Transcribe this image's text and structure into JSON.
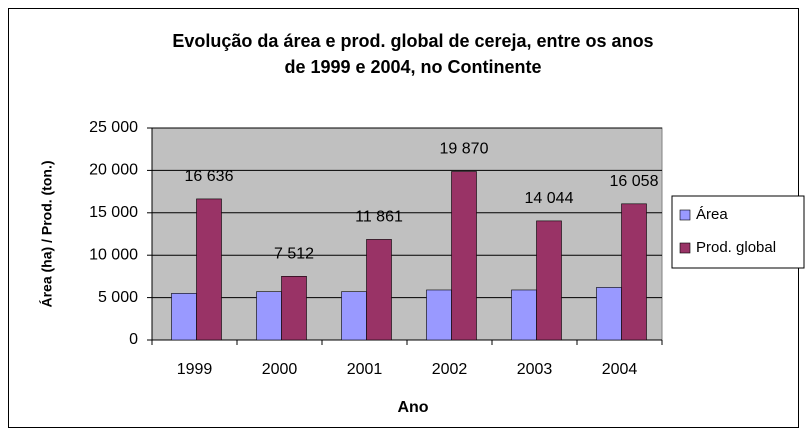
{
  "chart_data": {
    "type": "bar",
    "title": [
      "Evolução da área e prod. global de cereja, entre os anos",
      "de 1999 e 2004, no Continente"
    ],
    "x_label": "Ano",
    "y_label": "Área (ha) / Prod. (ton.)",
    "categories": [
      "1999",
      "2000",
      "2001",
      "2002",
      "2003",
      "2004"
    ],
    "series": [
      {
        "name": "Área",
        "color": "#9999ff",
        "values": [
          5500,
          5700,
          5700,
          5900,
          5900,
          6200
        ]
      },
      {
        "name": "Prod. global",
        "color": "#993366",
        "values": [
          16636,
          7512,
          11861,
          19870,
          14044,
          16058
        ],
        "value_labels": [
          "16 636",
          "7 512",
          "11 861",
          "19 870",
          "14 044",
          "16 058"
        ]
      }
    ],
    "ylim": [
      0,
      25000
    ],
    "yticks": [
      0,
      {
        "value": 5000,
        "label": "5 000"
      },
      {
        "value": 10000,
        "label": "10 000"
      },
      {
        "value": 15000,
        "label": "15 000"
      },
      {
        "value": 20000,
        "label": "20 000"
      },
      {
        "value": 25000,
        "label": "25 000"
      }
    ],
    "grid": true,
    "legend": "right",
    "plot_background": "#c0c0c0"
  }
}
